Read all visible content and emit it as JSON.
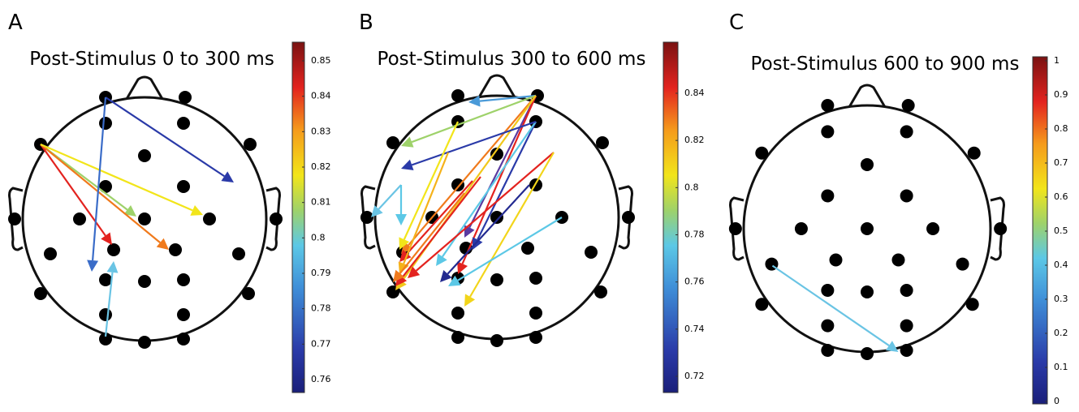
{
  "panels": [
    {
      "label": "A",
      "title": "Post-Stimulus 0 to 300 ms",
      "colorbar_ticks": [
        0.85,
        0.84,
        0.83,
        0.82,
        0.81,
        0.8,
        0.79,
        0.78,
        0.77,
        0.76
      ]
    },
    {
      "label": "B",
      "title": "Post-Stimulus 300 to 600 ms",
      "colorbar_ticks": [
        0.84,
        0.82,
        0.8,
        0.78,
        0.76,
        0.74,
        0.72
      ]
    },
    {
      "label": "C",
      "title": "Post-Stimulus 600 to 900 ms",
      "colorbar_ticks": [
        1,
        0.9,
        0.8,
        0.7,
        0.6,
        0.5,
        0.4,
        0.3,
        0.2,
        0.1,
        0
      ]
    }
  ]
}
